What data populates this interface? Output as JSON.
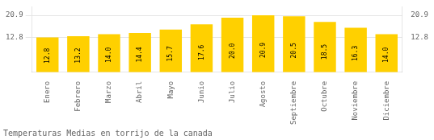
{
  "chart_data": {
    "type": "bar",
    "title": "Temperaturas Medias en torrijo de la canada",
    "categories": [
      "Enero",
      "Febrero",
      "Marzo",
      "Abril",
      "Mayo",
      "Junio",
      "Julio",
      "Agosto",
      "Septiembre",
      "Octubre",
      "Noviembre",
      "Diciembre"
    ],
    "values": [
      12.8,
      13.2,
      14.0,
      14.4,
      15.7,
      17.6,
      20.0,
      20.9,
      20.5,
      18.5,
      16.3,
      14.0
    ],
    "value_labels": [
      "12.8",
      "13.2",
      "14.0",
      "14.4",
      "15.7",
      "17.6",
      "20.0",
      "20.9",
      "20.5",
      "18.5",
      "16.3",
      "14.0"
    ],
    "data_labels": true,
    "color": "#FFD000",
    "ylim": [
      0,
      24.035
    ],
    "yticks": [
      12.8,
      20.9
    ],
    "y2lim": [
      0,
      24.035
    ],
    "y2ticks": [
      12.8,
      20.9
    ],
    "grid": true
  }
}
